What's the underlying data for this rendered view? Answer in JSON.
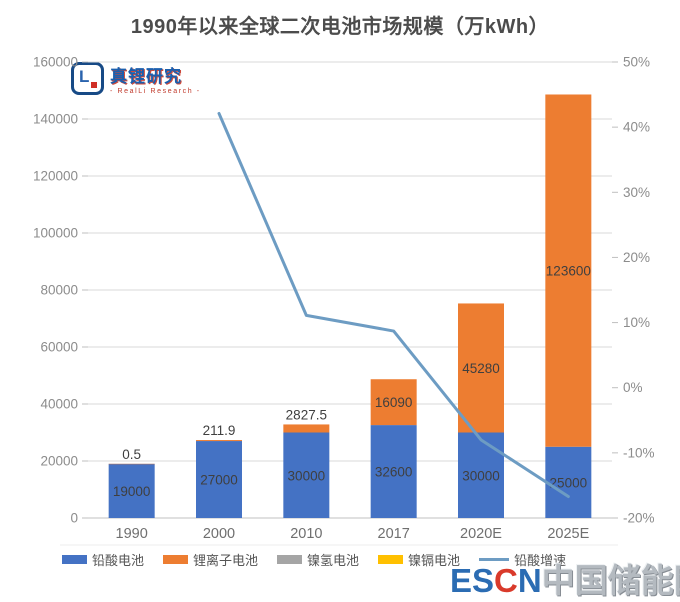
{
  "title": "1990年以来全球二次电池市场规模（万kWh）",
  "logo": {
    "icon_text": "L",
    "name_cn": "真锂研究",
    "name_en": "- RealLi Research -"
  },
  "watermark": {
    "escn_part1": "ES",
    "escn_part2": "C",
    "escn_part3": "N",
    "site": "中国储能网"
  },
  "chart_data": {
    "type": "bar",
    "stacked": true,
    "title": "1990年以来全球二次电池市场规模（万kWh）",
    "categories": [
      "1990",
      "2000",
      "2010",
      "2017",
      "2020E",
      "2025E"
    ],
    "series": [
      {
        "name": "铅酸电池",
        "kind": "bar",
        "color": "#4472c4",
        "values": [
          19000,
          27000,
          30000,
          32600,
          30000,
          25000
        ],
        "labels": [
          "19000",
          "27000",
          "30000",
          "32600",
          "30000",
          "25000"
        ]
      },
      {
        "name": "锂离子电池",
        "kind": "bar",
        "color": "#ed7d31",
        "values": [
          0.5,
          211.9,
          2827.5,
          16090,
          45280,
          123600
        ],
        "labels": [
          "0.5",
          "211.9",
          "2827.5",
          "16090",
          "45280",
          "123600"
        ]
      },
      {
        "name": "镍氢电池",
        "kind": "bar",
        "color": "#a5a5a5",
        "values": [
          0,
          0,
          0,
          0,
          0,
          0
        ],
        "labels": [
          null,
          null,
          null,
          null,
          null,
          null
        ]
      },
      {
        "name": "镍镉电池",
        "kind": "bar",
        "color": "#ffc000",
        "values": [
          0,
          0,
          0,
          0,
          0,
          0
        ],
        "labels": [
          null,
          null,
          null,
          null,
          null,
          null
        ]
      },
      {
        "name": "铅酸增速",
        "kind": "line",
        "color": "#6d9cc3",
        "axis": "right",
        "values": [
          null,
          42.1,
          11.1,
          8.7,
          -8.0,
          -16.7
        ]
      }
    ],
    "left_axis": {
      "min": 0,
      "max": 160000,
      "step": 20000,
      "ticks": [
        "160000",
        "140000",
        "120000",
        "100000",
        "80000",
        "60000",
        "40000",
        "20000",
        "0"
      ]
    },
    "right_axis": {
      "min": -20,
      "max": 50,
      "step": 10,
      "ticks": [
        "50%",
        "40%",
        "30%",
        "20%",
        "10%",
        "0%",
        "-10%",
        "-20%"
      ]
    },
    "grid": true,
    "legend_position": "bottom"
  }
}
